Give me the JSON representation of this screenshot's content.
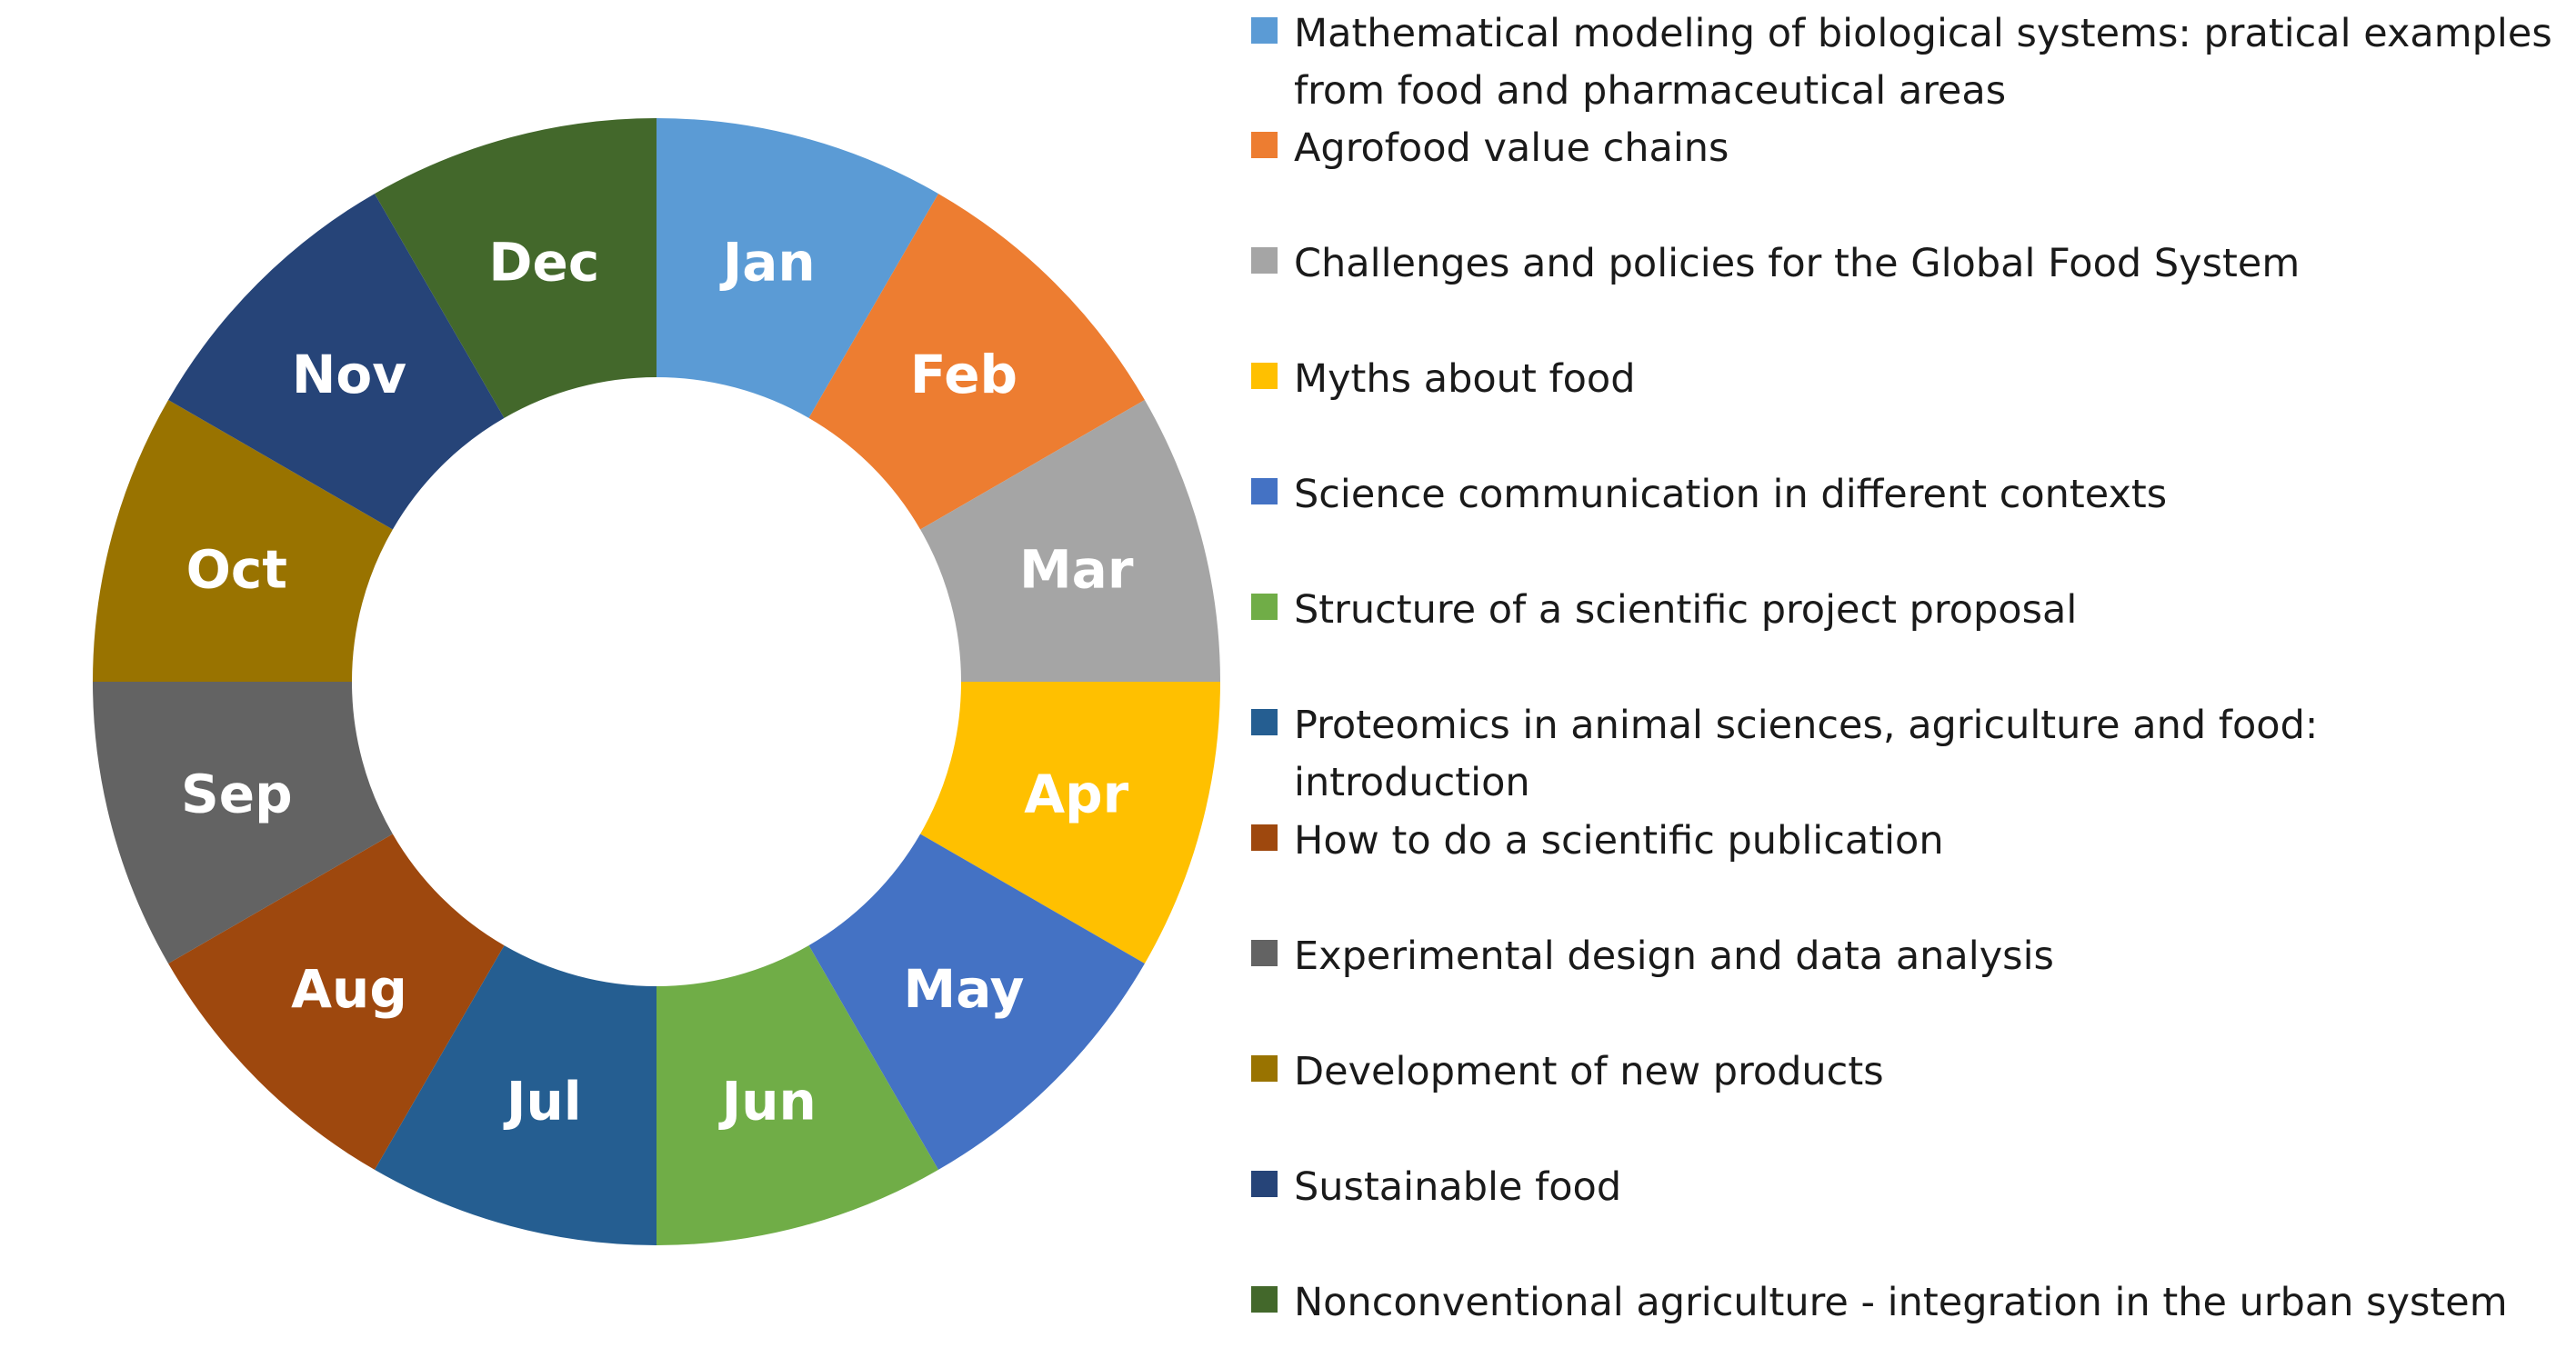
{
  "chart_data": {
    "type": "pie",
    "donut": true,
    "categories": [
      "Jan",
      "Feb",
      "Mar",
      "Apr",
      "May",
      "Jun",
      "Jul",
      "Aug",
      "Sep",
      "Oct",
      "Nov",
      "Dec"
    ],
    "values": [
      1,
      1,
      1,
      1,
      1,
      1,
      1,
      1,
      1,
      1,
      1,
      1
    ],
    "colors": [
      "#5b9bd5",
      "#ed7d31",
      "#a5a5a5",
      "#ffc000",
      "#4472c4",
      "#70ad47",
      "#255e91",
      "#9e480e",
      "#636363",
      "#997300",
      "#264478",
      "#43682b"
    ],
    "legend_position": "right",
    "legend": [
      "Mathematical modeling of biological systems: pratical examples from food and pharmaceutical areas",
      "Agrofood value chains",
      "Challenges and policies for the Global Food System",
      "Myths about food",
      "Science communication in different contexts",
      "Structure of a scientific project proposal",
      "Proteomics in animal sciences, agriculture and food: introduction",
      "How to do a scientific publication",
      "Experimental design and data analysis",
      "Development of new products",
      "Sustainable food",
      "Nonconventional agriculture - integration in the urban system"
    ]
  }
}
